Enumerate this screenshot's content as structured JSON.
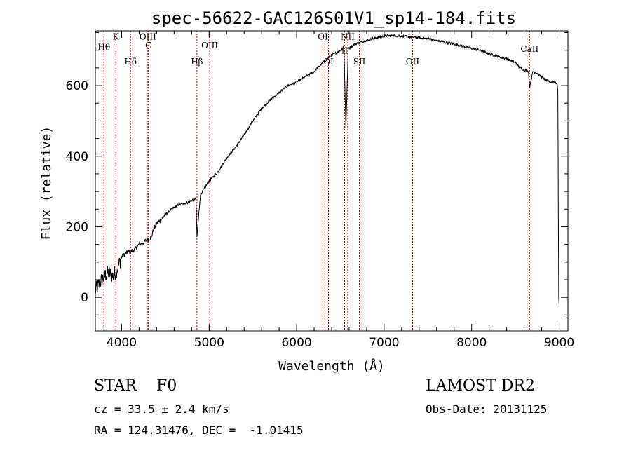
{
  "chart_data": {
    "type": "line",
    "title": "spec-56622-GAC126S01V1_sp14-184.fits",
    "xlabel": "Wavelength (Å)",
    "ylabel": "Flux (relative)",
    "xlim": [
      3700,
      9100
    ],
    "ylim": [
      -95,
      755
    ],
    "xticks": [
      4000,
      5000,
      6000,
      7000,
      8000,
      9000
    ],
    "yticks": [
      0,
      200,
      400,
      600
    ],
    "grid": false,
    "series": [
      {
        "line_color": "#000000",
        "x": [
          3700,
          3750,
          3800,
          3850,
          3900,
          3950,
          4000,
          4050,
          4100,
          4150,
          4200,
          4250,
          4300,
          4340,
          4360,
          4400,
          4450,
          4500,
          4550,
          4600,
          4650,
          4700,
          4750,
          4800,
          4850,
          4861,
          4900,
          4950,
          5000,
          5100,
          5200,
          5300,
          5400,
          5500,
          5600,
          5700,
          5800,
          5900,
          6000,
          6100,
          6200,
          6300,
          6400,
          6500,
          6540,
          6563,
          6590,
          6650,
          6700,
          6800,
          6900,
          7000,
          7100,
          7200,
          7300,
          7400,
          7500,
          7600,
          7700,
          7800,
          7900,
          8000,
          8100,
          8200,
          8300,
          8400,
          8500,
          8550,
          8600,
          8650,
          8662,
          8700,
          8750,
          8800,
          8850,
          8900,
          8950,
          8975,
          8985,
          8990,
          8995,
          9000
        ],
        "y": [
          20,
          40,
          60,
          70,
          60,
          80,
          115,
          125,
          130,
          135,
          150,
          155,
          165,
          170,
          190,
          210,
          220,
          235,
          245,
          255,
          262,
          265,
          268,
          275,
          280,
          170,
          290,
          310,
          330,
          355,
          395,
          425,
          460,
          500,
          535,
          560,
          580,
          600,
          610,
          625,
          640,
          665,
          685,
          700,
          710,
          480,
          705,
          715,
          720,
          728,
          735,
          740,
          742,
          740,
          738,
          735,
          733,
          728,
          722,
          718,
          712,
          705,
          700,
          690,
          682,
          676,
          665,
          650,
          645,
          640,
          595,
          640,
          635,
          625,
          615,
          610,
          612,
          605,
          590,
          250,
          0,
          -20
        ]
      }
    ],
    "lines": [
      {
        "name": "Hθ",
        "x": 3798,
        "label_y": 700
      },
      {
        "name": "K",
        "x": 3934,
        "label_y": 730
      },
      {
        "name": "Hδ",
        "x": 4102,
        "label_y": 660
      },
      {
        "name": "OIII",
        "x": 4300,
        "label_y": 730
      },
      {
        "name": "G",
        "x": 4308,
        "label_y": 705
      },
      {
        "name": "Hβ",
        "x": 4861,
        "label_y": 660
      },
      {
        "name": "OIII",
        "x": 5007,
        "label_y": 705
      },
      {
        "name": "OI",
        "x": 6300,
        "label_y": 730
      },
      {
        "name": "OI",
        "x": 6364,
        "label_y": 660
      },
      {
        "name": "NII",
        "x": 6584,
        "label_y": 730
      },
      {
        "name": "II",
        "x": 6548,
        "label_y": 690
      },
      {
        "name": "SII",
        "x": 6717,
        "label_y": 660
      },
      {
        "name": "OII",
        "x": 7325,
        "label_y": 660
      },
      {
        "name": "CaII",
        "x": 8662,
        "label_y": 695
      }
    ]
  },
  "info": {
    "object_class": "STAR    F0",
    "survey": "LAMOST DR2",
    "cz": "cz = 33.5 ± 2.4 km/s",
    "obs_date": "Obs-Date: 20131125",
    "coords": "RA = 124.31476, DEC =  -1.01415"
  }
}
